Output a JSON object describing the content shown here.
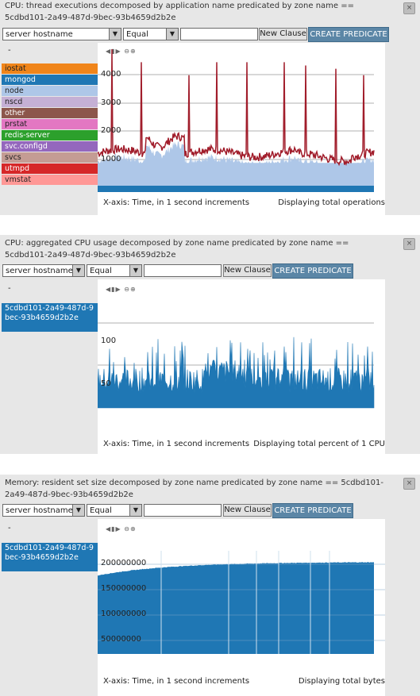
{
  "controls": {
    "select_field": "server hostname",
    "select_op": "Equal",
    "new_clause": "New Clause",
    "create_predicate": "CREATE PREDICATE",
    "collapse": "-"
  },
  "panels": [
    {
      "title": "CPU: thread executions decomposed by application name predicated by zone name == 5cdbd101-2a49-487d-9bec-93b4659d2b2e",
      "legend": [
        {
          "label": "iostat",
          "color": "#f0851a"
        },
        {
          "label": "mongod",
          "color": "#1f77b4"
        },
        {
          "label": "node",
          "color": "#aec7e8"
        },
        {
          "label": "nscd",
          "color": "#c5b0d5"
        },
        {
          "label": "other",
          "color": "#8c564b"
        },
        {
          "label": "prstat",
          "color": "#e377c2"
        },
        {
          "label": "redis-server",
          "color": "#2ca02c"
        },
        {
          "label": "svc.configd",
          "color": "#9467bd"
        },
        {
          "label": "svcs",
          "color": "#c49c94"
        },
        {
          "label": "utmpd",
          "color": "#d62728"
        },
        {
          "label": "vmstat",
          "color": "#ff9896"
        }
      ],
      "y_labels": [
        "4000",
        "3000",
        "2000",
        "1000"
      ],
      "xaxis": "X-axis: Time, in 1 second increments",
      "display": "Displaying total operations"
    },
    {
      "title": "CPU: aggregated CPU usage decomposed by zone name predicated by zone name == 5cdbd101-2a49-487d-9bec-93b4659d2b2e",
      "legend": [
        {
          "label": "5cdbd101-2a49-487d-9bec-93b4659d2b2e",
          "color": "#1f77b4"
        }
      ],
      "y_labels": [
        "100",
        "50"
      ],
      "xaxis": "X-axis: Time, in 1 second increments",
      "display": "Displaying total percent of 1 CPU"
    },
    {
      "title": "Memory: resident set size decomposed by zone name predicated by zone name == 5cdbd101-2a49-487d-9bec-93b4659d2b2e",
      "legend": [
        {
          "label": "5cdbd101-2a49-487d-9bec-93b4659d2b2e",
          "color": "#1f77b4"
        }
      ],
      "y_labels": [
        "200000000",
        "150000000",
        "100000000",
        "50000000"
      ],
      "xaxis": "X-axis: Time, in 1 second increments",
      "display": "Displaying total bytes"
    }
  ],
  "chart_data": [
    {
      "type": "area",
      "series": [
        {
          "name": "mongod"
        },
        {
          "name": "node"
        },
        {
          "name": "utmpd"
        }
      ],
      "ylim": [
        0,
        4200
      ],
      "spike_values": [
        4200,
        3800,
        3400,
        3800,
        3800,
        3800,
        3700,
        3600,
        3400
      ],
      "baseline": 1000
    },
    {
      "type": "area",
      "series": [
        {
          "name": "5cdbd101-2a49-487d-9bec-93b4659d2b2e"
        }
      ],
      "ylim": [
        0,
        130
      ],
      "typical_range": [
        10,
        55
      ],
      "peak": 80
    },
    {
      "type": "area",
      "series": [
        {
          "name": "5cdbd101-2a49-487d-9bec-93b4659d2b2e"
        }
      ],
      "ylim": [
        0,
        230000000
      ],
      "start": 175000000,
      "end": 205000000
    }
  ]
}
